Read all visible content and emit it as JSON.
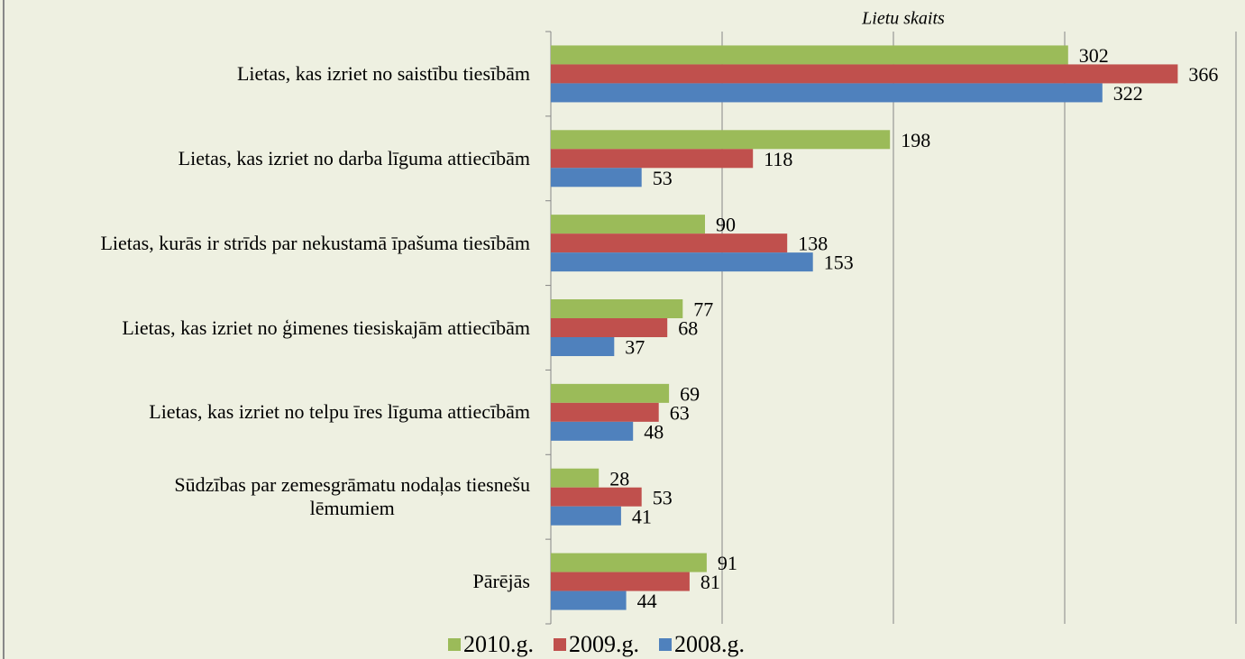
{
  "chart_data": {
    "type": "bar",
    "orientation": "horizontal",
    "x_label": "Lietu skaits",
    "categories": [
      "Lietas, kas izriet no saistību tiesībām",
      "Lietas, kas izriet no darba līguma attiecībām",
      "Lietas, kurās ir strīds par nekustamā īpašuma tiesībām",
      "Lietas, kas izriet no ģimenes tiesiskajām attiecībām",
      "Lietas, kas izriet no telpu īres līguma attiecībām",
      "Sūdzības par zemesgrāmatu nodaļas tiesnešu\nlēmumiem",
      "Pārējās"
    ],
    "series": [
      {
        "name": "2010.g.",
        "color": "#9bbb59",
        "values": [
          302,
          198,
          90,
          77,
          69,
          28,
          91
        ]
      },
      {
        "name": "2009.g.",
        "color": "#c0504d",
        "values": [
          366,
          118,
          138,
          68,
          63,
          53,
          81
        ]
      },
      {
        "name": "2008.g.",
        "color": "#4f81bd",
        "values": [
          322,
          53,
          153,
          37,
          48,
          41,
          44
        ]
      }
    ],
    "xlim": [
      0,
      400
    ],
    "xticks": [
      0,
      100,
      200,
      300,
      400
    ],
    "grid": true,
    "legend": "bottom"
  }
}
